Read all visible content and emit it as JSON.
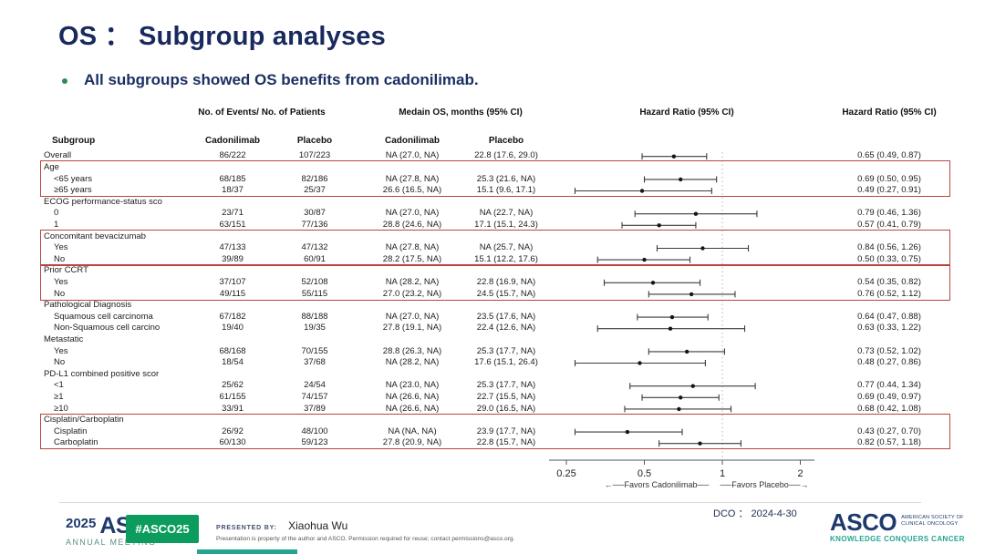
{
  "slide": {
    "title": "OS ： Subgroup analyses",
    "bullet": "All subgroups showed OS benefits from cadonilimab."
  },
  "table": {
    "headers": {
      "events_patients": "No. of Events/  No. of Patients",
      "median_os": "Medain OS,  months (95% CI)",
      "hr_plot": "Hazard Ratio (95% CI)",
      "hr_text": "Hazard Ratio (95% CI)",
      "subgroup": "Subgroup",
      "ev_cadonilimab": "Cadonilimab",
      "ev_placebo": "Placebo",
      "os_cadonilimab": "Cadonilimab",
      "os_placebo": "Placebo"
    }
  },
  "chart_data": {
    "type": "scatter",
    "subtype": "forest-plot",
    "title": "OS ： Subgroup analyses",
    "x_axis": {
      "scale": "log",
      "ticks": [
        0.25,
        0.5,
        1,
        2
      ],
      "tick_labels": [
        "0.25",
        "0.5",
        "1",
        "2"
      ],
      "ref_line": 1,
      "favors_left": "←──Favors Cadonilimab──",
      "favors_right": "──Favors Placebo──→"
    },
    "rows": [
      {
        "label": "Overall",
        "ev_c": "86/222",
        "ev_p": "107/223",
        "os_c": "NA (27.0, NA)",
        "os_p": "22.8 (17.6, 29.0)",
        "hr": 0.65,
        "lo": 0.49,
        "hi": 0.87,
        "hr_text": "0.65 (0.49, 0.87)",
        "indent": false
      },
      {
        "label": "Age",
        "group": true
      },
      {
        "label": "<65 years",
        "ev_c": "68/185",
        "ev_p": "82/186",
        "os_c": "NA (27.8, NA)",
        "os_p": "25.3 (21.6, NA)",
        "hr": 0.69,
        "lo": 0.5,
        "hi": 0.95,
        "hr_text": "0.69 (0.50, 0.95)",
        "indent": true
      },
      {
        "label": "≥65 years",
        "ev_c": "18/37",
        "ev_p": "25/37",
        "os_c": "26.6 (16.5, NA)",
        "os_p": "15.1 (9.6, 17.1)",
        "hr": 0.49,
        "lo": 0.27,
        "hi": 0.91,
        "hr_text": "0.49 (0.27, 0.91)",
        "indent": true
      },
      {
        "label": "ECOG performance-status sco",
        "group": true
      },
      {
        "label": "0",
        "ev_c": "23/71",
        "ev_p": "30/87",
        "os_c": "NA (27.0, NA)",
        "os_p": "NA (22.7, NA)",
        "hr": 0.79,
        "lo": 0.46,
        "hi": 1.36,
        "hr_text": "0.79 (0.46, 1.36)",
        "indent": true
      },
      {
        "label": "1",
        "ev_c": "63/151",
        "ev_p": "77/136",
        "os_c": "28.8 (24.6, NA)",
        "os_p": "17.1 (15.1, 24.3)",
        "hr": 0.57,
        "lo": 0.41,
        "hi": 0.79,
        "hr_text": "0.57 (0.41, 0.79)",
        "indent": true
      },
      {
        "label": "Concomitant bevacizumab",
        "group": true
      },
      {
        "label": "Yes",
        "ev_c": "47/133",
        "ev_p": "47/132",
        "os_c": "NA (27.8, NA)",
        "os_p": "NA (25.7, NA)",
        "hr": 0.84,
        "lo": 0.56,
        "hi": 1.26,
        "hr_text": "0.84 (0.56, 1.26)",
        "indent": true
      },
      {
        "label": "No",
        "ev_c": "39/89",
        "ev_p": "60/91",
        "os_c": "28.2 (17.5, NA)",
        "os_p": "15.1 (12.2, 17.6)",
        "hr": 0.5,
        "lo": 0.33,
        "hi": 0.75,
        "hr_text": "0.50 (0.33, 0.75)",
        "indent": true
      },
      {
        "label": "Prior CCRT",
        "group": true
      },
      {
        "label": "Yes",
        "ev_c": "37/107",
        "ev_p": "52/108",
        "os_c": "NA (28.2, NA)",
        "os_p": "22.8 (16.9, NA)",
        "hr": 0.54,
        "lo": 0.35,
        "hi": 0.82,
        "hr_text": "0.54 (0.35, 0.82)",
        "indent": true
      },
      {
        "label": "No",
        "ev_c": "49/115",
        "ev_p": "55/115",
        "os_c": "27.0 (23.2, NA)",
        "os_p": "24.5 (15.7, NA)",
        "hr": 0.76,
        "lo": 0.52,
        "hi": 1.12,
        "hr_text": "0.76 (0.52, 1.12)",
        "indent": true
      },
      {
        "label": "Pathological Diagnosis",
        "group": true
      },
      {
        "label": "Squamous cell carcinoma",
        "ev_c": "67/182",
        "ev_p": "88/188",
        "os_c": "NA (27.0, NA)",
        "os_p": "23.5 (17.6, NA)",
        "hr": 0.64,
        "lo": 0.47,
        "hi": 0.88,
        "hr_text": "0.64 (0.47, 0.88)",
        "indent": true
      },
      {
        "label": "Non-Squamous cell carcino",
        "ev_c": "19/40",
        "ev_p": "19/35",
        "os_c": "27.8 (19.1, NA)",
        "os_p": "22.4 (12.6, NA)",
        "hr": 0.63,
        "lo": 0.33,
        "hi": 1.22,
        "hr_text": "0.63 (0.33, 1.22)",
        "indent": true
      },
      {
        "label": "Metastatic",
        "group": true
      },
      {
        "label": "Yes",
        "ev_c": "68/168",
        "ev_p": "70/155",
        "os_c": "28.8 (26.3, NA)",
        "os_p": "25.3 (17.7, NA)",
        "hr": 0.73,
        "lo": 0.52,
        "hi": 1.02,
        "hr_text": "0.73 (0.52, 1.02)",
        "indent": true
      },
      {
        "label": "No",
        "ev_c": "18/54",
        "ev_p": "37/68",
        "os_c": "NA (28.2, NA)",
        "os_p": "17.6 (15.1, 26.4)",
        "hr": 0.48,
        "lo": 0.27,
        "hi": 0.86,
        "hr_text": "0.48 (0.27, 0.86)",
        "indent": true
      },
      {
        "label": "PD-L1 combined positive scor",
        "group": true
      },
      {
        "label": "<1",
        "ev_c": "25/62",
        "ev_p": "24/54",
        "os_c": "NA (23.0, NA)",
        "os_p": "25.3 (17.7, NA)",
        "hr": 0.77,
        "lo": 0.44,
        "hi": 1.34,
        "hr_text": "0.77 (0.44, 1.34)",
        "indent": true
      },
      {
        "label": "≥1",
        "ev_c": "61/155",
        "ev_p": "74/157",
        "os_c": "NA (26.6, NA)",
        "os_p": "22.7 (15.5, NA)",
        "hr": 0.69,
        "lo": 0.49,
        "hi": 0.97,
        "hr_text": "0.69 (0.49, 0.97)",
        "indent": true
      },
      {
        "label": "≥10",
        "ev_c": "33/91",
        "ev_p": "37/89",
        "os_c": "NA (26.6, NA)",
        "os_p": "29.0 (16.5, NA)",
        "hr": 0.68,
        "lo": 0.42,
        "hi": 1.08,
        "hr_text": "0.68 (0.42, 1.08)",
        "indent": true
      },
      {
        "label": "Cisplatin/Carboplatin",
        "group": true
      },
      {
        "label": "Cisplatin",
        "ev_c": "26/92",
        "ev_p": "48/100",
        "os_c": "NA (NA, NA)",
        "os_p": "23.9 (17.7, NA)",
        "hr": 0.43,
        "lo": 0.27,
        "hi": 0.7,
        "hr_text": "0.43 (0.27, 0.70)",
        "indent": true
      },
      {
        "label": "Carboplatin",
        "ev_c": "60/130",
        "ev_p": "59/123",
        "os_c": "27.8 (20.9, NA)",
        "os_p": "22.8 (15.7, NA)",
        "hr": 0.82,
        "lo": 0.57,
        "hi": 1.18,
        "hr_text": "0.82 (0.57, 1.18)",
        "indent": true
      }
    ],
    "highlight_groups": [
      {
        "start": 1,
        "end": 3
      },
      {
        "start": 7,
        "end": 9
      },
      {
        "start": 10,
        "end": 12
      },
      {
        "start": 23,
        "end": 25
      }
    ],
    "colors": {
      "highlight_red": "#b8453e",
      "title_navy": "#18295d",
      "bullet_green": "#2e8b57",
      "hashtag_green": "#0b9c5e",
      "teal": "#26a492"
    }
  },
  "footer": {
    "logo_year": "2025",
    "logo_name": "ASCO",
    "logo_sub": "ANNUAL MEETING",
    "hashtag": "#ASCO25",
    "presented_by_label": "PRESENTED BY:",
    "presenter": "Xiaohua Wu",
    "disclaimer": "Presentation is property of the author and ASCO. Permission required for reuse; contact permissions@asco.org.",
    "dco": "DCO ： 2024-4-30",
    "asco_logo": "ASCO",
    "asco_society_line1": "AMERICAN SOCIETY OF",
    "asco_society_line2": "CLINICAL ONCOLOGY",
    "asco_tagline": "KNOWLEDGE CONQUERS CANCER"
  }
}
